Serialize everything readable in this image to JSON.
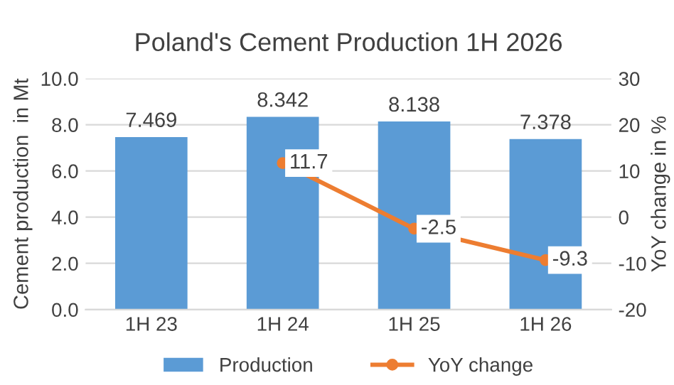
{
  "chart_data": {
    "type": "bar",
    "title": "Poland's Cement Production 1H 2026",
    "ylabel": "Cement production  in Mt",
    "y2label": "YoY change in %",
    "categories": [
      "1H 23",
      "1H 24",
      "1H 25",
      "1H 26"
    ],
    "series": [
      {
        "name": "Production",
        "color": "#5b9bd5",
        "values": [
          7.469,
          8.342,
          8.138,
          7.378
        ]
      },
      {
        "name": "YoY change",
        "type": "line",
        "axis": "y2",
        "color": "#ed7d31",
        "marker": "circle",
        "values": [
          null,
          11.7,
          -2.5,
          -9.3
        ]
      }
    ],
    "ylim": [
      0,
      10
    ],
    "yticks": [
      {
        "value": 0,
        "label": "0.0"
      },
      {
        "value": 2,
        "label": "2.0"
      },
      {
        "value": 4,
        "label": "4.0"
      },
      {
        "value": 6,
        "label": "6.0"
      },
      {
        "value": 8,
        "label": "8.0"
      },
      {
        "value": 10,
        "label": "10.0"
      }
    ],
    "y2lim": [
      -20,
      30
    ],
    "y2ticks": [
      -20,
      -10,
      0,
      10,
      20,
      30
    ],
    "grid": "y",
    "legend": "bottom",
    "data_labels": true
  }
}
